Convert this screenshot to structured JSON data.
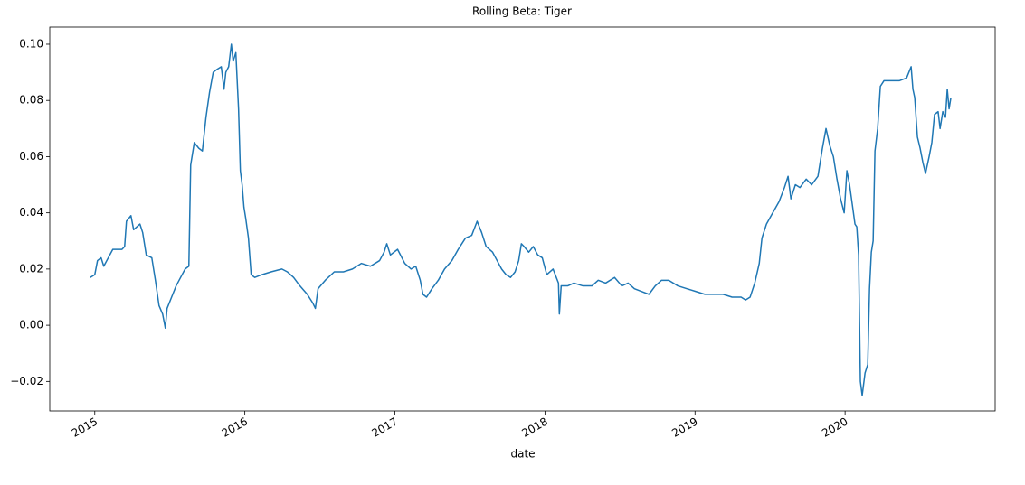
{
  "chart_data": {
    "type": "line",
    "title": "Rolling Beta: Tiger",
    "xlabel": "date",
    "color": "#1f77b4",
    "xlim": [
      2014.7,
      2021.0
    ],
    "xticks": [
      2015,
      2016,
      2017,
      2018,
      2019,
      2020
    ],
    "ylim": [
      -0.0305,
      0.1061
    ],
    "yticks": [
      {
        "value": -0.02,
        "label": "−0.02"
      },
      {
        "value": 0,
        "label": "0.00"
      },
      0.02,
      0.04,
      0.06,
      0.08,
      {
        "value": 0.1,
        "label": "0.10"
      }
    ],
    "grid": false,
    "x": [
      2014.97,
      2015.0,
      2015.018,
      2015.042,
      2015.06,
      2015.09,
      2015.12,
      2015.181,
      2015.199,
      2015.211,
      2015.241,
      2015.259,
      2015.301,
      2015.319,
      2015.343,
      2015.38,
      2015.404,
      2015.428,
      2015.452,
      2015.47,
      2015.482,
      2015.512,
      2015.542,
      2015.572,
      2015.602,
      2015.627,
      2015.639,
      2015.663,
      2015.693,
      2015.717,
      2015.741,
      2015.765,
      2015.789,
      2015.813,
      2015.843,
      2015.861,
      2015.873,
      2015.892,
      2015.91,
      2015.922,
      2015.94,
      2015.958,
      2015.97,
      2015.982,
      2015.994,
      2016.006,
      2016.024,
      2016.042,
      2016.066,
      2016.114,
      2016.175,
      2016.247,
      2016.283,
      2016.325,
      2016.367,
      2016.416,
      2016.452,
      2016.47,
      2016.488,
      2016.536,
      2016.596,
      2016.657,
      2016.717,
      2016.777,
      2016.837,
      2016.898,
      2016.928,
      2016.946,
      2016.97,
      2017.018,
      2017.066,
      2017.108,
      2017.139,
      2017.169,
      2017.187,
      2017.211,
      2017.247,
      2017.289,
      2017.331,
      2017.38,
      2017.422,
      2017.47,
      2017.512,
      2017.548,
      2017.578,
      2017.608,
      2017.651,
      2017.681,
      2017.711,
      2017.741,
      2017.771,
      2017.801,
      2017.825,
      2017.843,
      2017.861,
      2017.892,
      2017.922,
      2017.952,
      2017.982,
      2018.012,
      2018.054,
      2018.09,
      2018.096,
      2018.108,
      2018.151,
      2018.193,
      2018.253,
      2018.313,
      2018.355,
      2018.404,
      2018.464,
      2018.512,
      2018.554,
      2018.596,
      2018.645,
      2018.693,
      2018.735,
      2018.777,
      2018.825,
      2018.886,
      2018.946,
      2019.006,
      2019.066,
      2019.127,
      2019.187,
      2019.247,
      2019.307,
      2019.337,
      2019.367,
      2019.398,
      2019.428,
      2019.446,
      2019.476,
      2019.518,
      2019.56,
      2019.596,
      2019.62,
      2019.639,
      2019.669,
      2019.699,
      2019.741,
      2019.777,
      2019.819,
      2019.849,
      2019.873,
      2019.898,
      2019.922,
      2019.946,
      2019.97,
      2019.994,
      2020.012,
      2020.03,
      2020.048,
      2020.066,
      2020.078,
      2020.09,
      2020.102,
      2020.114,
      2020.133,
      2020.151,
      2020.163,
      2020.175,
      2020.187,
      2020.199,
      2020.217,
      2020.235,
      2020.259,
      2020.301,
      2020.361,
      2020.41,
      2020.44,
      2020.452,
      2020.464,
      2020.482,
      2020.5,
      2020.518,
      2020.536,
      2020.56,
      2020.578,
      2020.596,
      2020.62,
      2020.633,
      2020.651,
      2020.669,
      2020.681,
      2020.693,
      2020.705
    ],
    "values": [
      0.017,
      0.018,
      0.023,
      0.024,
      0.021,
      0.024,
      0.027,
      0.027,
      0.028,
      0.037,
      0.039,
      0.034,
      0.036,
      0.033,
      0.025,
      0.024,
      0.016,
      0.007,
      0.004,
      -0.001,
      0.006,
      0.01,
      0.014,
      0.017,
      0.02,
      0.021,
      0.057,
      0.065,
      0.063,
      0.062,
      0.074,
      0.083,
      0.09,
      0.091,
      0.092,
      0.084,
      0.09,
      0.092,
      0.1,
      0.094,
      0.097,
      0.077,
      0.055,
      0.05,
      0.042,
      0.038,
      0.031,
      0.018,
      0.017,
      0.018,
      0.019,
      0.02,
      0.019,
      0.017,
      0.014,
      0.011,
      0.008,
      0.006,
      0.013,
      0.016,
      0.019,
      0.019,
      0.02,
      0.022,
      0.021,
      0.023,
      0.026,
      0.029,
      0.025,
      0.027,
      0.022,
      0.02,
      0.021,
      0.016,
      0.011,
      0.01,
      0.013,
      0.016,
      0.02,
      0.023,
      0.027,
      0.031,
      0.032,
      0.037,
      0.033,
      0.028,
      0.026,
      0.023,
      0.02,
      0.018,
      0.017,
      0.019,
      0.023,
      0.029,
      0.028,
      0.026,
      0.028,
      0.025,
      0.024,
      0.018,
      0.02,
      0.015,
      0.004,
      0.014,
      0.014,
      0.015,
      0.014,
      0.014,
      0.016,
      0.015,
      0.017,
      0.014,
      0.015,
      0.013,
      0.012,
      0.011,
      0.014,
      0.016,
      0.016,
      0.014,
      0.013,
      0.012,
      0.011,
      0.011,
      0.011,
      0.01,
      0.01,
      0.009,
      0.01,
      0.015,
      0.022,
      0.031,
      0.036,
      0.04,
      0.044,
      0.049,
      0.053,
      0.045,
      0.05,
      0.049,
      0.052,
      0.05,
      0.053,
      0.063,
      0.07,
      0.064,
      0.06,
      0.052,
      0.045,
      0.04,
      0.055,
      0.05,
      0.043,
      0.036,
      0.035,
      0.025,
      -0.02,
      -0.025,
      -0.017,
      -0.014,
      0.013,
      0.026,
      0.03,
      0.062,
      0.07,
      0.085,
      0.087,
      0.087,
      0.087,
      0.088,
      0.092,
      0.084,
      0.081,
      0.067,
      0.063,
      0.058,
      0.054,
      0.06,
      0.065,
      0.075,
      0.076,
      0.07,
      0.076,
      0.074,
      0.084,
      0.077,
      0.081
    ]
  }
}
